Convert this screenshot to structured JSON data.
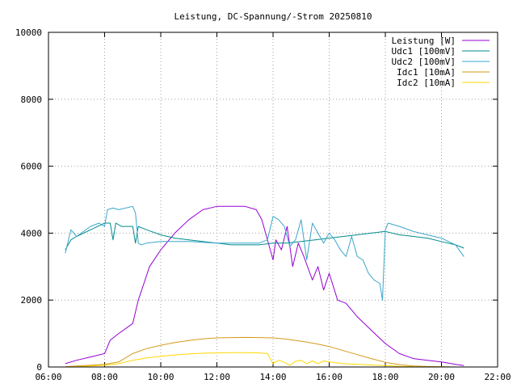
{
  "chart_data": {
    "type": "line",
    "title": "Leistung, DC-Spannung/-Strom 20250810",
    "xlabel": "",
    "ylabel": "",
    "xlim": [
      6,
      22
    ],
    "ylim": [
      0,
      10000
    ],
    "grid": true,
    "legend_position": "top-right",
    "xticks": [
      "06:00",
      "08:00",
      "10:00",
      "12:00",
      "14:00",
      "16:00",
      "18:00",
      "20:00",
      "22:00"
    ],
    "yticks": [
      "0",
      "2000",
      "4000",
      "6000",
      "8000",
      "10000"
    ],
    "series": [
      {
        "name": "Leistung [W]",
        "color": "#9400d3",
        "x": [
          6.6,
          7.0,
          7.5,
          8.0,
          8.2,
          8.5,
          9.0,
          9.2,
          9.4,
          9.6,
          10.0,
          10.5,
          11.0,
          11.5,
          12.0,
          12.5,
          13.0,
          13.4,
          13.6,
          13.8,
          14.0,
          14.1,
          14.3,
          14.5,
          14.7,
          14.9,
          15.1,
          15.4,
          15.6,
          15.8,
          16.0,
          16.3,
          16.6,
          17.0,
          17.5,
          18.0,
          18.5,
          19.0,
          19.5,
          20.0,
          20.5,
          20.8
        ],
        "y": [
          100,
          200,
          300,
          400,
          800,
          1000,
          1300,
          2000,
          2500,
          3000,
          3500,
          4000,
          4400,
          4700,
          4800,
          4800,
          4800,
          4700,
          4400,
          3800,
          3200,
          3800,
          3500,
          4200,
          3000,
          3700,
          3300,
          2600,
          3000,
          2300,
          2800,
          2000,
          1900,
          1500,
          1100,
          700,
          400,
          250,
          200,
          150,
          80,
          40
        ]
      },
      {
        "name": "Udc1 [100mV]",
        "color": "#008b8b",
        "x": [
          6.6,
          6.8,
          7.0,
          7.5,
          8.0,
          8.2,
          8.3,
          8.4,
          8.6,
          9.0,
          9.1,
          9.2,
          9.5,
          10.0,
          10.5,
          11.0,
          11.5,
          12.0,
          12.5,
          13.0,
          13.5,
          14.0,
          14.5,
          15.0,
          15.5,
          16.0,
          16.5,
          17.0,
          17.5,
          18.0,
          18.5,
          19.0,
          19.5,
          20.0,
          20.5,
          20.8
        ],
        "y": [
          3500,
          3800,
          3900,
          4100,
          4300,
          4300,
          3800,
          4300,
          4200,
          4200,
          3700,
          4200,
          4100,
          3950,
          3850,
          3800,
          3750,
          3700,
          3650,
          3650,
          3650,
          3700,
          3700,
          3750,
          3800,
          3850,
          3900,
          3950,
          4000,
          4050,
          3950,
          3900,
          3850,
          3750,
          3650,
          3550
        ]
      },
      {
        "name": "Udc2 [100mV]",
        "color": "#3aa6cc",
        "x": [
          6.6,
          6.8,
          7.0,
          7.5,
          7.8,
          8.0,
          8.1,
          8.3,
          8.5,
          9.0,
          9.1,
          9.2,
          9.3,
          9.5,
          10.0,
          10.5,
          11.0,
          12.0,
          13.0,
          13.5,
          13.8,
          14.0,
          14.2,
          14.4,
          14.6,
          14.8,
          15.0,
          15.2,
          15.4,
          15.6,
          15.8,
          16.0,
          16.2,
          16.4,
          16.6,
          16.8,
          17.0,
          17.2,
          17.4,
          17.6,
          17.8,
          17.9,
          18.0,
          18.1,
          18.5,
          19.0,
          19.5,
          20.0,
          20.5,
          20.8
        ],
        "y": [
          3400,
          4100,
          3900,
          4200,
          4300,
          4200,
          4700,
          4750,
          4700,
          4800,
          4600,
          3700,
          3650,
          3700,
          3750,
          3750,
          3750,
          3700,
          3700,
          3700,
          3800,
          4500,
          4400,
          4200,
          3600,
          3800,
          4400,
          3200,
          4300,
          4000,
          3700,
          4000,
          3800,
          3500,
          3300,
          3900,
          3300,
          3200,
          2800,
          2600,
          2500,
          2000,
          4100,
          4300,
          4200,
          4050,
          3950,
          3850,
          3650,
          3300
        ]
      },
      {
        "name": "Idc1 [10mA]",
        "color": "#d29b17",
        "x": [
          6.6,
          7.0,
          7.5,
          8.0,
          8.5,
          9.0,
          9.5,
          10.0,
          10.5,
          11.0,
          11.5,
          12.0,
          12.5,
          13.0,
          13.5,
          14.0,
          14.5,
          15.0,
          15.5,
          16.0,
          16.5,
          17.0,
          17.5,
          18.0,
          18.5,
          19.0,
          19.5,
          20.0,
          20.5
        ],
        "y": [
          10,
          30,
          50,
          80,
          150,
          400,
          550,
          650,
          730,
          790,
          840,
          870,
          880,
          885,
          880,
          870,
          830,
          770,
          700,
          610,
          490,
          370,
          250,
          140,
          70,
          30,
          15,
          10,
          0
        ]
      },
      {
        "name": "Idc2 [10mA]",
        "color": "#ffd700",
        "x": [
          6.6,
          7.0,
          7.5,
          8.0,
          8.5,
          9.0,
          9.5,
          10.0,
          10.5,
          11.0,
          11.5,
          12.0,
          12.5,
          13.0,
          13.5,
          13.8,
          14.0,
          14.2,
          14.4,
          14.6,
          14.8,
          15.0,
          15.2,
          15.4,
          15.6,
          15.8,
          16.0,
          16.5,
          17.0,
          17.5,
          18.0,
          18.5,
          19.0,
          19.5
        ],
        "y": [
          0,
          10,
          30,
          50,
          100,
          200,
          270,
          320,
          360,
          390,
          410,
          420,
          430,
          430,
          420,
          400,
          100,
          200,
          140,
          50,
          170,
          200,
          100,
          180,
          100,
          180,
          150,
          100,
          80,
          60,
          40,
          20,
          10,
          0
        ]
      }
    ]
  }
}
